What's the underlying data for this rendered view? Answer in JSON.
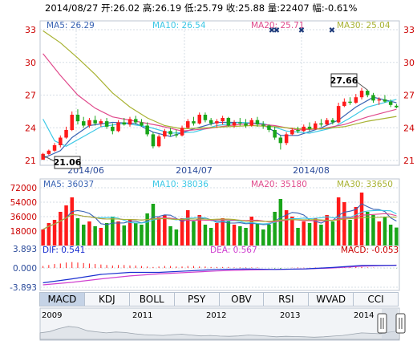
{
  "header": {
    "text": "2014/08/27 开:26.02 高:26.19 低:25.79 收:25.88 量:22407 幅:-0.61%"
  },
  "colors": {
    "up": "#ff1a1a",
    "down": "#19a519",
    "ma5": "#3a64b4",
    "ma10": "#3cc8e6",
    "ma20": "#e04a8c",
    "ma30": "#a8b232",
    "axis": "#bcc6d2",
    "grid": "#d5dde6",
    "label_blue": "#2a4a9a",
    "label_red": "#cc0000"
  },
  "price_panel": {
    "ma_labels": [
      {
        "text": "MA5: 26.29",
        "color_key": "ma5"
      },
      {
        "text": "MA10: 26.54",
        "color_key": "ma10"
      },
      {
        "text": "MA20: 25.71",
        "color_key": "ma20"
      },
      {
        "text": "MA30: 25.04",
        "color_key": "ma30"
      }
    ],
    "y_ticks": [
      "33",
      "30",
      "27",
      "24",
      "21"
    ],
    "x_ticks": [
      "2014/06",
      "2014/07",
      "2014/08"
    ],
    "annotation_high": "27.66",
    "annotation_low": "21.06",
    "event_marks": [
      "✖",
      "✖",
      "✖",
      "✖"
    ]
  },
  "volume_panel": {
    "ma_labels": [
      {
        "text": "MA5: 36037",
        "color_key": "ma5"
      },
      {
        "text": "MA10: 38036",
        "color_key": "ma10"
      },
      {
        "text": "MA20: 35180",
        "color_key": "ma20"
      },
      {
        "text": "MA30: 33650",
        "color_key": "ma30"
      }
    ],
    "y_ticks": [
      "72000",
      "54000",
      "36000",
      "18000"
    ]
  },
  "macd_panel": {
    "dif_label": "DIF: 0.541",
    "dea_label": "DEA: 0.567",
    "macd_label": "MACD: -0.053",
    "y_ticks": [
      "3.893",
      "0.000",
      "-3.893"
    ]
  },
  "tabs": [
    {
      "label": "MACD",
      "active": true
    },
    {
      "label": "KDJ",
      "active": false
    },
    {
      "label": "BOLL",
      "active": false
    },
    {
      "label": "PSY",
      "active": false
    },
    {
      "label": "OBV",
      "active": false
    },
    {
      "label": "RSI",
      "active": false
    },
    {
      "label": "WVAD",
      "active": false
    },
    {
      "label": "CCI",
      "active": false
    }
  ],
  "timeline": {
    "years": [
      "2009",
      "2011",
      "2012",
      "2013",
      "2014"
    ]
  },
  "chart_data": {
    "type": "candlestick",
    "price_range": [
      21,
      33
    ],
    "candles": [
      {
        "o": 21.06,
        "h": 21.7,
        "l": 21.06,
        "c": 21.6
      },
      {
        "o": 21.6,
        "h": 22.0,
        "l": 21.5,
        "c": 21.9
      },
      {
        "o": 21.9,
        "h": 22.6,
        "l": 21.8,
        "c": 22.4
      },
      {
        "o": 22.4,
        "h": 23.3,
        "l": 22.2,
        "c": 23.1
      },
      {
        "o": 23.1,
        "h": 24.1,
        "l": 23.0,
        "c": 23.8
      },
      {
        "o": 23.8,
        "h": 25.5,
        "l": 23.7,
        "c": 25.2
      },
      {
        "o": 25.2,
        "h": 25.7,
        "l": 24.3,
        "c": 24.6
      },
      {
        "o": 24.6,
        "h": 25.0,
        "l": 24.0,
        "c": 24.2
      },
      {
        "o": 24.2,
        "h": 24.9,
        "l": 24.0,
        "c": 24.7
      },
      {
        "o": 24.7,
        "h": 25.1,
        "l": 24.2,
        "c": 24.4
      },
      {
        "o": 24.4,
        "h": 24.8,
        "l": 24.1,
        "c": 24.6
      },
      {
        "o": 24.6,
        "h": 24.9,
        "l": 23.9,
        "c": 24.1
      },
      {
        "o": 24.1,
        "h": 24.4,
        "l": 23.4,
        "c": 23.7
      },
      {
        "o": 23.7,
        "h": 24.7,
        "l": 23.6,
        "c": 24.5
      },
      {
        "o": 24.5,
        "h": 24.9,
        "l": 24.2,
        "c": 24.3
      },
      {
        "o": 24.3,
        "h": 25.0,
        "l": 24.1,
        "c": 24.8
      },
      {
        "o": 24.8,
        "h": 25.1,
        "l": 24.3,
        "c": 24.5
      },
      {
        "o": 24.5,
        "h": 24.8,
        "l": 24.1,
        "c": 24.2
      },
      {
        "o": 24.2,
        "h": 24.5,
        "l": 23.2,
        "c": 23.4
      },
      {
        "o": 23.4,
        "h": 23.6,
        "l": 22.1,
        "c": 22.3
      },
      {
        "o": 22.3,
        "h": 23.4,
        "l": 22.2,
        "c": 23.2
      },
      {
        "o": 23.2,
        "h": 23.9,
        "l": 23.0,
        "c": 23.7
      },
      {
        "o": 23.7,
        "h": 24.0,
        "l": 23.2,
        "c": 23.4
      },
      {
        "o": 23.4,
        "h": 23.8,
        "l": 23.1,
        "c": 23.3
      },
      {
        "o": 23.3,
        "h": 24.2,
        "l": 23.2,
        "c": 24.0
      },
      {
        "o": 24.0,
        "h": 24.8,
        "l": 23.9,
        "c": 24.6
      },
      {
        "o": 24.6,
        "h": 25.0,
        "l": 24.2,
        "c": 24.4
      },
      {
        "o": 24.4,
        "h": 25.4,
        "l": 24.3,
        "c": 25.2
      },
      {
        "o": 25.2,
        "h": 25.4,
        "l": 24.5,
        "c": 24.7
      },
      {
        "o": 24.7,
        "h": 24.9,
        "l": 24.2,
        "c": 24.4
      },
      {
        "o": 24.4,
        "h": 24.8,
        "l": 24.0,
        "c": 24.6
      },
      {
        "o": 24.6,
        "h": 25.1,
        "l": 24.3,
        "c": 24.9
      },
      {
        "o": 24.9,
        "h": 25.0,
        "l": 24.1,
        "c": 24.2
      },
      {
        "o": 24.2,
        "h": 24.7,
        "l": 24.0,
        "c": 24.5
      },
      {
        "o": 24.5,
        "h": 24.9,
        "l": 24.2,
        "c": 24.4
      },
      {
        "o": 24.4,
        "h": 24.8,
        "l": 24.0,
        "c": 24.2
      },
      {
        "o": 24.2,
        "h": 24.9,
        "l": 24.1,
        "c": 24.7
      },
      {
        "o": 24.7,
        "h": 25.0,
        "l": 24.1,
        "c": 24.3
      },
      {
        "o": 24.3,
        "h": 24.6,
        "l": 23.9,
        "c": 24.2
      },
      {
        "o": 24.2,
        "h": 24.3,
        "l": 23.6,
        "c": 23.8
      },
      {
        "o": 23.8,
        "h": 24.1,
        "l": 22.9,
        "c": 23.1
      },
      {
        "o": 23.1,
        "h": 23.3,
        "l": 22.0,
        "c": 22.6
      },
      {
        "o": 22.6,
        "h": 23.6,
        "l": 22.4,
        "c": 23.4
      },
      {
        "o": 23.4,
        "h": 24.0,
        "l": 23.3,
        "c": 23.8
      },
      {
        "o": 23.8,
        "h": 24.1,
        "l": 23.5,
        "c": 23.7
      },
      {
        "o": 23.7,
        "h": 24.3,
        "l": 23.6,
        "c": 24.1
      },
      {
        "o": 24.1,
        "h": 24.5,
        "l": 23.7,
        "c": 23.9
      },
      {
        "o": 23.9,
        "h": 24.6,
        "l": 23.8,
        "c": 24.4
      },
      {
        "o": 24.4,
        "h": 24.8,
        "l": 24.1,
        "c": 24.3
      },
      {
        "o": 24.3,
        "h": 24.9,
        "l": 24.2,
        "c": 24.7
      },
      {
        "o": 24.7,
        "h": 24.9,
        "l": 24.3,
        "c": 24.5
      },
      {
        "o": 24.5,
        "h": 26.3,
        "l": 24.4,
        "c": 26.0
      },
      {
        "o": 26.0,
        "h": 26.7,
        "l": 25.9,
        "c": 26.4
      },
      {
        "o": 26.4,
        "h": 26.8,
        "l": 26.1,
        "c": 26.3
      },
      {
        "o": 26.3,
        "h": 27.1,
        "l": 26.2,
        "c": 26.8
      },
      {
        "o": 26.8,
        "h": 27.66,
        "l": 26.6,
        "c": 27.4
      },
      {
        "o": 27.4,
        "h": 27.5,
        "l": 26.8,
        "c": 27.0
      },
      {
        "o": 27.0,
        "h": 27.2,
        "l": 26.3,
        "c": 26.5
      },
      {
        "o": 26.5,
        "h": 26.8,
        "l": 26.1,
        "c": 26.6
      },
      {
        "o": 26.6,
        "h": 27.0,
        "l": 26.3,
        "c": 26.4
      },
      {
        "o": 26.4,
        "h": 26.6,
        "l": 25.9,
        "c": 26.1
      },
      {
        "o": 26.02,
        "h": 26.19,
        "l": 25.79,
        "c": 25.88
      }
    ],
    "ma_series": [
      {
        "name": "MA5",
        "color_key": "ma5",
        "points": [
          [
            0,
            21.2
          ],
          [
            3,
            21.9
          ],
          [
            5,
            23.1
          ],
          [
            8,
            24.2
          ],
          [
            12,
            24.5
          ],
          [
            16,
            24.4
          ],
          [
            19,
            23.6
          ],
          [
            22,
            23.2
          ],
          [
            26,
            23.9
          ],
          [
            30,
            24.5
          ],
          [
            34,
            24.5
          ],
          [
            38,
            24.3
          ],
          [
            41,
            23.3
          ],
          [
            44,
            23.3
          ],
          [
            48,
            24.0
          ],
          [
            51,
            24.7
          ],
          [
            54,
            25.9
          ],
          [
            57,
            26.8
          ],
          [
            61,
            26.3
          ]
        ]
      },
      {
        "name": "MA10",
        "color_key": "ma10",
        "points": [
          [
            0,
            24.8
          ],
          [
            2,
            22.8
          ],
          [
            4,
            22.3
          ],
          [
            7,
            23.2
          ],
          [
            10,
            24.1
          ],
          [
            14,
            24.4
          ],
          [
            18,
            24.1
          ],
          [
            22,
            23.5
          ],
          [
            26,
            23.6
          ],
          [
            30,
            24.2
          ],
          [
            34,
            24.5
          ],
          [
            38,
            24.4
          ],
          [
            42,
            23.7
          ],
          [
            46,
            23.5
          ],
          [
            50,
            24.0
          ],
          [
            53,
            24.9
          ],
          [
            56,
            25.9
          ],
          [
            61,
            26.6
          ]
        ]
      },
      {
        "name": "MA20",
        "color_key": "ma20",
        "points": [
          [
            0,
            30.8
          ],
          [
            3,
            28.8
          ],
          [
            6,
            27.0
          ],
          [
            9,
            25.8
          ],
          [
            12,
            25.0
          ],
          [
            16,
            24.6
          ],
          [
            20,
            24.2
          ],
          [
            24,
            23.7
          ],
          [
            28,
            23.9
          ],
          [
            32,
            24.2
          ],
          [
            36,
            24.4
          ],
          [
            40,
            24.2
          ],
          [
            44,
            23.8
          ],
          [
            48,
            23.9
          ],
          [
            52,
            24.3
          ],
          [
            56,
            25.0
          ],
          [
            61,
            25.7
          ]
        ]
      },
      {
        "name": "MA30",
        "color_key": "ma30",
        "points": [
          [
            0,
            32.9
          ],
          [
            3,
            31.8
          ],
          [
            6,
            30.4
          ],
          [
            9,
            28.9
          ],
          [
            12,
            27.2
          ],
          [
            15,
            25.9
          ],
          [
            18,
            24.9
          ],
          [
            21,
            24.2
          ],
          [
            24,
            23.9
          ],
          [
            28,
            24.0
          ],
          [
            32,
            24.1
          ],
          [
            36,
            24.2
          ],
          [
            40,
            24.1
          ],
          [
            44,
            23.9
          ],
          [
            48,
            23.9
          ],
          [
            52,
            24.1
          ],
          [
            56,
            24.6
          ],
          [
            61,
            25.04
          ]
        ]
      }
    ],
    "volume_max": 72000,
    "volume": [
      20000,
      28000,
      32000,
      42000,
      50000,
      60000,
      34000,
      26000,
      30000,
      24000,
      22000,
      28000,
      36000,
      30000,
      25000,
      32000,
      28000,
      26000,
      40000,
      52000,
      35000,
      38000,
      24000,
      20000,
      34000,
      44000,
      30000,
      38000,
      26000,
      22000,
      28000,
      34000,
      30000,
      26000,
      24000,
      22000,
      36000,
      28000,
      20000,
      26000,
      42000,
      58000,
      44000,
      36000,
      22000,
      30000,
      28000,
      34000,
      26000,
      38000,
      30000,
      60000,
      54000,
      32000,
      48000,
      66000,
      42000,
      38000,
      30000,
      36000,
      26000,
      22407
    ],
    "macd_range": [
      -3.893,
      3.893
    ],
    "dif": [
      [
        0,
        -3.0
      ],
      [
        5,
        -2.2
      ],
      [
        10,
        -1.3
      ],
      [
        15,
        -0.9
      ],
      [
        20,
        -0.9
      ],
      [
        25,
        -0.6
      ],
      [
        30,
        -0.3
      ],
      [
        35,
        -0.2
      ],
      [
        40,
        -0.3
      ],
      [
        45,
        -0.2
      ],
      [
        50,
        0.1
      ],
      [
        55,
        0.5
      ],
      [
        61,
        0.541
      ]
    ],
    "dea": [
      [
        0,
        -3.4
      ],
      [
        5,
        -2.9
      ],
      [
        10,
        -2.2
      ],
      [
        15,
        -1.6
      ],
      [
        20,
        -1.2
      ],
      [
        25,
        -0.9
      ],
      [
        30,
        -0.6
      ],
      [
        35,
        -0.4
      ],
      [
        40,
        -0.3
      ],
      [
        45,
        -0.2
      ],
      [
        50,
        0.0
      ],
      [
        55,
        0.35
      ],
      [
        61,
        0.567
      ]
    ],
    "macd_hist": [
      0.4,
      0.6,
      0.8,
      0.9,
      1.1,
      1.2,
      1.1,
      1.0,
      0.9,
      0.8,
      0.7,
      0.6,
      0.5,
      0.6,
      0.6,
      0.5,
      0.5,
      0.4,
      0.3,
      0.2,
      0.3,
      0.4,
      0.4,
      0.3,
      0.3,
      0.4,
      0.4,
      0.3,
      0.3,
      0.2,
      0.2,
      0.2,
      0.2,
      0.1,
      0.1,
      0.1,
      0.1,
      0.1,
      0.0,
      -0.05,
      -0.1,
      -0.15,
      -0.05,
      0.05,
      0.1,
      0.05,
      0.05,
      0.1,
      0.1,
      0.1,
      0.15,
      0.25,
      0.3,
      0.25,
      0.25,
      0.2,
      0.1,
      0.05,
      0.0,
      -0.02,
      -0.04,
      -0.053
    ],
    "history": [
      0.3,
      0.36,
      0.5,
      0.6,
      0.55,
      0.4,
      0.35,
      0.3,
      0.34,
      0.32,
      0.26,
      0.22,
      0.2,
      0.18,
      0.22,
      0.24,
      0.2,
      0.16,
      0.18,
      0.15,
      0.14,
      0.16,
      0.2,
      0.18,
      0.15,
      0.12,
      0.14,
      0.13,
      0.12,
      0.1,
      0.12,
      0.15,
      0.18,
      0.24,
      0.3,
      0.28,
      0.26,
      0.34,
      0.4
    ]
  }
}
